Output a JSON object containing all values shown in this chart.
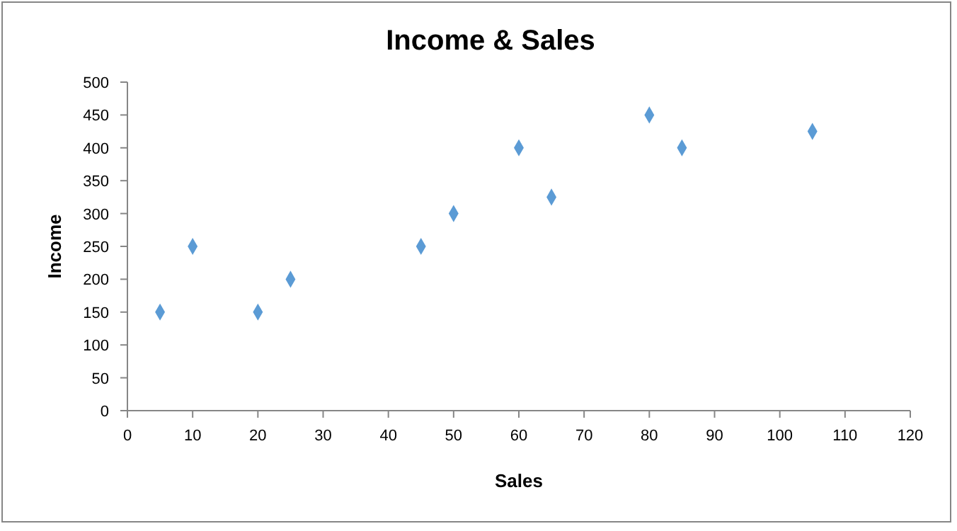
{
  "chart_data": {
    "type": "scatter",
    "title": "Income & Sales",
    "xlabel": "Sales",
    "ylabel": "Income",
    "x": [
      5,
      10,
      20,
      25,
      45,
      50,
      60,
      65,
      80,
      85,
      105
    ],
    "series": [
      {
        "color": "#5b9bd5",
        "values": [
          150,
          250,
          150,
          200,
          250,
          300,
          400,
          325,
          450,
          400,
          425
        ]
      }
    ],
    "xlim": [
      0,
      120
    ],
    "xticks": [
      0,
      10,
      20,
      30,
      40,
      50,
      60,
      70,
      80,
      90,
      100,
      110,
      120
    ],
    "ylim": [
      0,
      500
    ],
    "yticks": [
      0,
      50,
      100,
      150,
      200,
      250,
      300,
      350,
      400,
      450,
      500
    ],
    "marker": "diamond"
  }
}
